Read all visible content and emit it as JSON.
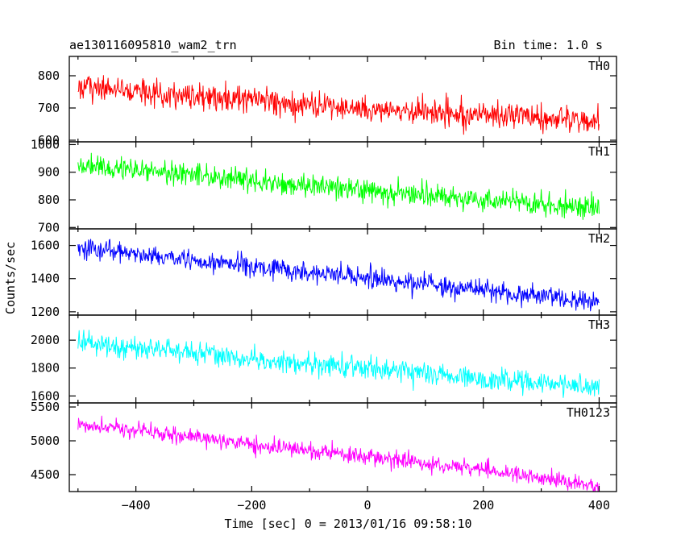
{
  "header": {
    "left_title": "ae130116095810_wam2_trn",
    "right_title": "Bin time: 1.0 s"
  },
  "chart_data": {
    "type": "line",
    "title": "ae130116095810_wam2_trn",
    "subtitle": "Bin time: 1.0 s",
    "xlabel": "Time [sec] 0 = 2013/01/16 09:58:10",
    "ylabel": "Counts/sec",
    "xlim": [
      -515,
      430
    ],
    "x_ticks": [
      -400,
      -200,
      0,
      200,
      400
    ],
    "x_tick_labels": [
      "−400",
      "−200",
      "0",
      "200",
      "400"
    ],
    "x_range_data": [
      -500,
      400
    ],
    "bin_time_s": 1.0,
    "grid": false,
    "panels": [
      {
        "name": "TH0",
        "color": "#ff0000",
        "ylim": [
          595,
          860
        ],
        "y_ticks": [
          600,
          700,
          800
        ],
        "trend": {
          "x": [
            -500,
            -400,
            -300,
            -200,
            -100,
            0,
            100,
            200,
            300,
            400
          ],
          "y": [
            765,
            752,
            738,
            722,
            708,
            697,
            686,
            676,
            666,
            655
          ]
        },
        "noise_amplitude": 38
      },
      {
        "name": "TH1",
        "color": "#00ff00",
        "ylim": [
          695,
          1010
        ],
        "y_ticks": [
          700,
          800,
          900,
          1000
        ],
        "trend": {
          "x": [
            -500,
            -400,
            -300,
            -200,
            -100,
            0,
            100,
            200,
            300,
            400
          ],
          "y": [
            925,
            910,
            890,
            868,
            850,
            832,
            815,
            800,
            786,
            770
          ]
        },
        "noise_amplitude": 38
      },
      {
        "name": "TH2",
        "color": "#0000ff",
        "ylim": [
          1180,
          1700
        ],
        "y_ticks": [
          1200,
          1400,
          1600
        ],
        "trend": {
          "x": [
            -500,
            -400,
            -300,
            -200,
            -100,
            0,
            100,
            200,
            300,
            400
          ],
          "y": [
            1580,
            1550,
            1515,
            1475,
            1440,
            1400,
            1365,
            1330,
            1295,
            1255
          ]
        },
        "noise_amplitude": 55
      },
      {
        "name": "TH3",
        "color": "#00ffff",
        "ylim": [
          1550,
          2180
        ],
        "y_ticks": [
          1600,
          1800,
          2000
        ],
        "trend": {
          "x": [
            -500,
            -400,
            -300,
            -200,
            -100,
            0,
            100,
            200,
            300,
            400
          ],
          "y": [
            1990,
            1950,
            1910,
            1870,
            1830,
            1795,
            1760,
            1725,
            1695,
            1660
          ]
        },
        "noise_amplitude": 70
      },
      {
        "name": "TH0123",
        "color": "#ff00ff",
        "ylim": [
          4250,
          5560
        ],
        "y_ticks": [
          4500,
          5000,
          5500
        ],
        "trend": {
          "x": [
            -500,
            -400,
            -300,
            -200,
            -100,
            0,
            100,
            200,
            300,
            400
          ],
          "y": [
            5250,
            5150,
            5050,
            4960,
            4860,
            4760,
            4660,
            4570,
            4460,
            4330
          ]
        },
        "noise_amplitude": 110
      }
    ]
  }
}
